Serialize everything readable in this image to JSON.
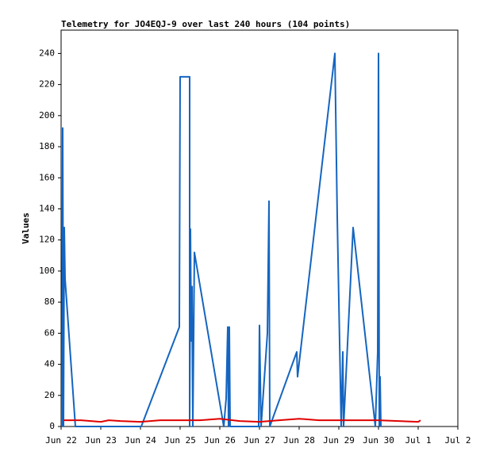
{
  "chart_data": {
    "type": "line",
    "title": "Telemetry for JO4EQJ-9 over last 240 hours (104 points)",
    "y_label": "Values",
    "xlim": [
      0,
      10
    ],
    "xticks": [
      {
        "value": 0,
        "label": "Jun 22"
      },
      {
        "value": 1,
        "label": "Jun 23"
      },
      {
        "value": 2,
        "label": "Jun 24"
      },
      {
        "value": 3,
        "label": "Jun 25"
      },
      {
        "value": 4,
        "label": "Jun 26"
      },
      {
        "value": 5,
        "label": "Jun 27"
      },
      {
        "value": 6,
        "label": "Jun 28"
      },
      {
        "value": 7,
        "label": "Jun 29"
      },
      {
        "value": 8,
        "label": "Jun 30"
      },
      {
        "value": 9,
        "label": "Jul 1"
      },
      {
        "value": 10,
        "label": "Jul 2"
      }
    ],
    "ylim": [
      0,
      255
    ],
    "yticks": [
      0,
      20,
      40,
      60,
      80,
      100,
      120,
      140,
      160,
      180,
      200,
      220,
      240
    ],
    "grid": false,
    "series": [
      {
        "color": "#1565c0",
        "x": [
          0.02,
          0.04,
          0.06,
          0.08,
          0.1,
          0.36,
          2.02,
          2.98,
          3.0,
          3.24,
          3.24,
          3.26,
          3.28,
          3.3,
          3.32,
          3.36,
          4.1,
          4.16,
          4.2,
          4.22,
          4.24,
          4.26,
          4.98,
          5.0,
          5.04,
          5.2,
          5.24,
          5.26,
          5.94,
          5.96,
          6.9,
          6.96,
          7.06,
          7.1,
          7.12,
          7.36,
          7.92,
          7.98,
          8.0,
          8.02,
          8.04,
          8.06
        ],
        "values": [
          0,
          192,
          0,
          128,
          95,
          0,
          0,
          64,
          225,
          225,
          0,
          127,
          55,
          90,
          0,
          112,
          0,
          18,
          64,
          0,
          64,
          0,
          0,
          65,
          0,
          60,
          145,
          0,
          48,
          32,
          240,
          135,
          0,
          48,
          0,
          128,
          0,
          48,
          240,
          0,
          32,
          0
        ]
      },
      {
        "color": "#e00000",
        "x": [
          0.06,
          0.5,
          1.0,
          1.2,
          1.5,
          2.0,
          2.5,
          3.0,
          3.5,
          4.0,
          4.5,
          5.0,
          5.5,
          6.0,
          6.5,
          7.0,
          7.5,
          8.0,
          8.5,
          9.0,
          9.06
        ],
        "values": [
          4,
          4,
          3,
          4,
          3.5,
          3,
          4,
          4,
          4,
          5,
          3.5,
          3,
          4,
          5,
          4,
          4,
          4,
          4,
          3.5,
          3,
          4
        ]
      }
    ]
  }
}
